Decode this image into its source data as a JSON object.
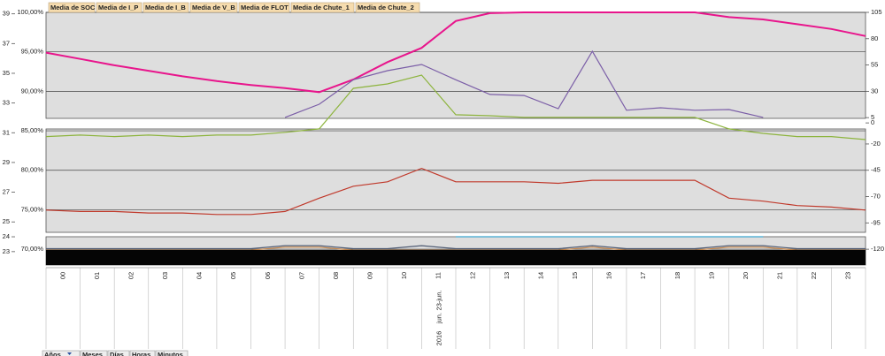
{
  "chart_data": {
    "type": "line",
    "xlim": [
      0,
      24
    ],
    "xticks": [
      {
        "value": 0,
        "label": "00"
      },
      {
        "value": 1,
        "label": "01"
      },
      {
        "value": 2,
        "label": "02"
      },
      {
        "value": 3,
        "label": "03"
      },
      {
        "value": 4,
        "label": "04"
      },
      {
        "value": 5,
        "label": "05"
      },
      {
        "value": 6,
        "label": "06"
      },
      {
        "value": 7,
        "label": "07"
      },
      {
        "value": 8,
        "label": "08"
      },
      {
        "value": 9,
        "label": "09"
      },
      {
        "value": 10,
        "label": "10"
      },
      {
        "value": 11,
        "label": "11"
      },
      {
        "value": 12,
        "label": "12"
      },
      {
        "value": 13,
        "label": "13"
      },
      {
        "value": 14,
        "label": "14"
      },
      {
        "value": 15,
        "label": "15"
      },
      {
        "value": 16,
        "label": "16"
      },
      {
        "value": 17,
        "label": "17"
      },
      {
        "value": 18,
        "label": "18"
      },
      {
        "value": 19,
        "label": "19"
      },
      {
        "value": 20,
        "label": "20"
      },
      {
        "value": 21,
        "label": "21"
      },
      {
        "value": 22,
        "label": "22"
      },
      {
        "value": 23,
        "label": "23"
      }
    ],
    "date_labels": [
      "23-jun.",
      "jun.",
      "2016"
    ],
    "ylim": [
      68,
      100
    ],
    "yticks": [
      {
        "value": 100,
        "label": "100,00%"
      },
      {
        "value": 95,
        "label": "95,00%"
      },
      {
        "value": 90,
        "label": "90,00%"
      },
      {
        "value": 85,
        "label": "85,00%"
      },
      {
        "value": 80,
        "label": "80,00%"
      },
      {
        "value": 75,
        "label": "75,00%"
      },
      {
        "value": 70,
        "label": "70,00%"
      }
    ],
    "y2lim": [
      -135,
      105
    ],
    "y2ticks": [
      105,
      80,
      55,
      30,
      5,
      0,
      -20,
      -45,
      -70,
      -95,
      -120
    ],
    "y3lim": [
      22.1,
      39.1
    ],
    "y3ticks": [
      39,
      37,
      35,
      33,
      31,
      29,
      27,
      25,
      24,
      23
    ],
    "grid": true,
    "x": [
      0,
      1,
      2,
      3,
      4,
      5,
      6,
      7,
      8,
      9,
      10,
      11,
      12,
      13,
      14,
      15,
      16,
      17,
      18,
      19,
      20,
      21,
      22,
      23,
      24
    ],
    "series": [
      {
        "name": "Media de SOC",
        "color": "#e8158c",
        "axis": "y",
        "values": [
          94.9,
          94.1,
          93.3,
          92.6,
          91.9,
          91.3,
          90.8,
          90.4,
          89.9,
          91.5,
          93.7,
          95.5,
          98.9,
          99.9,
          100,
          100,
          100,
          100,
          100,
          100,
          99.4,
          99.1,
          98.5,
          97.9,
          97.0
        ]
      },
      {
        "name": "Media de I_P",
        "color": "#7b5ea7",
        "axis": "y2",
        "values": [
          null,
          null,
          null,
          null,
          null,
          null,
          null,
          5.2,
          17.7,
          41,
          49.6,
          55.5,
          41,
          27,
          26,
          13.5,
          68,
          12,
          14.4,
          12,
          12.7,
          5.2,
          null,
          null,
          null
        ]
      },
      {
        "name": "Media de I_B",
        "color": "#8db43e",
        "axis": "y2",
        "values": [
          -13,
          -11.6,
          -13,
          -11.6,
          -13,
          -11.6,
          -11.6,
          -9,
          -5.7,
          32.8,
          37,
          45.4,
          7.7,
          6.8,
          5.2,
          5.2,
          5.2,
          5.2,
          5.2,
          5.2,
          -5.7,
          -10,
          -13,
          -13,
          -15.8
        ]
      },
      {
        "name": "Media de V_B",
        "color": "#c0392b",
        "axis": "y3",
        "values": [
          25.8,
          25.7,
          25.7,
          25.6,
          25.6,
          25.5,
          25.5,
          25.7,
          26.6,
          27.4,
          27.7,
          28.6,
          27.7,
          27.7,
          27.7,
          27.6,
          27.8,
          27.8,
          27.8,
          27.8,
          26.6,
          26.4,
          26.1,
          26.0,
          25.8
        ]
      },
      {
        "name": "Media de FLOT",
        "color": "#3aa6d0",
        "axis": "y3",
        "values": [
          null,
          null,
          null,
          null,
          null,
          null,
          null,
          null,
          null,
          null,
          null,
          null,
          24.0,
          24.0,
          24.0,
          24.0,
          24.0,
          24.0,
          24.0,
          24.0,
          24.0,
          24.0,
          null,
          null,
          null
        ]
      },
      {
        "name": "Media de Chute_1",
        "color": "#c8874a",
        "axis": "y3",
        "values": [
          23.1,
          23.1,
          23.1,
          23.1,
          23.1,
          23.1,
          23.1,
          23.3,
          23.3,
          23.1,
          23.1,
          23.1,
          23.1,
          23.1,
          23.1,
          23.1,
          23.3,
          23.1,
          23.1,
          23.1,
          23.3,
          23.3,
          23.1,
          23.1,
          23.1
        ]
      },
      {
        "name": "Media de Chute_2",
        "color": "#4f5b73",
        "axis": "y3",
        "values": [
          23.2,
          23.2,
          23.2,
          23.2,
          23.2,
          23.2,
          23.2,
          23.4,
          23.4,
          23.2,
          23.2,
          23.4,
          23.2,
          23.2,
          23.2,
          23.2,
          23.4,
          23.2,
          23.2,
          23.2,
          23.4,
          23.4,
          23.2,
          23.2,
          23.2
        ]
      }
    ],
    "period_buttons": [
      "Años",
      "Meses",
      "Días",
      "Horas",
      "Minutos"
    ]
  }
}
